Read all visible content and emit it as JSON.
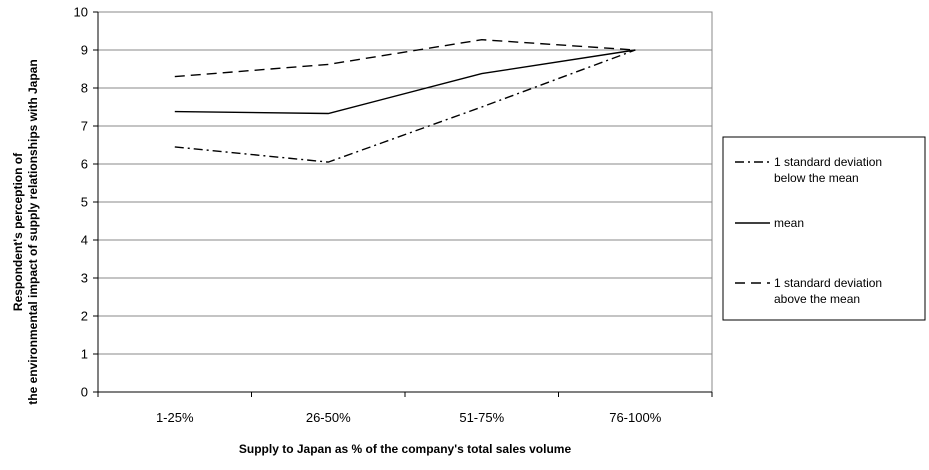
{
  "chart_data": {
    "type": "line",
    "categories": [
      "1-25%",
      "26-50%",
      "51-75%",
      "76-100%"
    ],
    "series": [
      {
        "name": "1 standard deviation below the mean",
        "values": [
          6.45,
          6.05,
          7.5,
          9.0
        ],
        "dash": "dashdot"
      },
      {
        "name": "mean",
        "values": [
          7.38,
          7.33,
          8.38,
          9.0
        ],
        "dash": "solid"
      },
      {
        "name": "1 standard deviation above the mean",
        "values": [
          8.3,
          8.62,
          9.27,
          9.0
        ],
        "dash": "dash"
      }
    ],
    "xlabel": "Supply to Japan as % of the company's total sales volume",
    "ylabel": "Respondent's perception of the environmental impact of supply relationships with Japan",
    "ylim": [
      0,
      10
    ],
    "yticks": [
      0,
      1,
      2,
      3,
      4,
      5,
      6,
      7,
      8,
      9,
      10
    ],
    "grid": "horizontal",
    "legend_position": "right"
  }
}
